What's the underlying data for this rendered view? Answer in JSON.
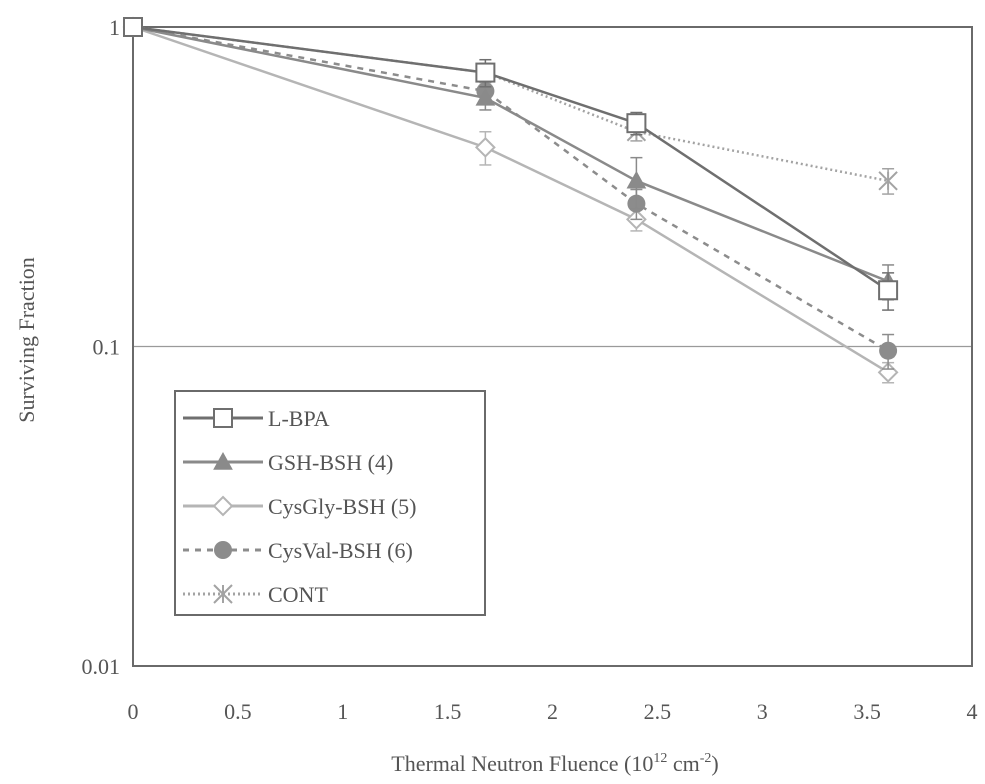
{
  "chart_data": {
    "type": "line",
    "title": "",
    "xlabel": "Thermal Neutron Fluence (10",
    "xlabel_sup1": "12",
    "xlabel_mid": " cm",
    "xlabel_sup2": "-2",
    "xlabel_end": ")",
    "ylabel": "Surviving Fraction",
    "xlim": [
      0,
      4
    ],
    "ylim": [
      0.01,
      1
    ],
    "yscale": "log",
    "x_ticks": [
      "0",
      "0.5",
      "1",
      "1.5",
      "2",
      "2.5",
      "3",
      "3.5",
      "4"
    ],
    "x_tick_values": [
      0,
      0.5,
      1,
      1.5,
      2,
      2.5,
      3,
      3.5,
      4
    ],
    "y_ticks": [
      "1",
      "0.1",
      "0.01"
    ],
    "y_tick_values": [
      1,
      0.1,
      0.01
    ],
    "grid": "horizontal line at 0.1",
    "legend_position": "lower-left",
    "series": [
      {
        "name": "L-BPA",
        "marker": "open-square",
        "line": "solid",
        "color": "#6f6f6f",
        "x": [
          0,
          1.68,
          2.4,
          3.6
        ],
        "y": [
          1.0,
          0.72,
          0.5,
          0.15
        ],
        "err": [
          0,
          0.07,
          0.04,
          0.02
        ]
      },
      {
        "name": "GSH-BSH (4)",
        "marker": "filled-triangle",
        "line": "solid",
        "color": "#8a8a8a",
        "x": [
          0,
          1.68,
          2.4,
          3.6
        ],
        "y": [
          1.0,
          0.6,
          0.33,
          0.16
        ],
        "err": [
          0,
          0.05,
          0.06,
          0.02
        ]
      },
      {
        "name": "CysGly-BSH (5)",
        "marker": "open-diamond",
        "line": "solid",
        "color": "#b5b5b5",
        "x": [
          0,
          1.68,
          2.4,
          3.6
        ],
        "y": [
          1.0,
          0.42,
          0.25,
          0.083
        ],
        "err": [
          0,
          0.05,
          0.02,
          0.006
        ]
      },
      {
        "name": "CysVal-BSH (6)",
        "marker": "filled-circle",
        "line": "dashed",
        "color": "#8c8c8c",
        "x": [
          0,
          1.68,
          2.4,
          3.6
        ],
        "y": [
          1.0,
          0.63,
          0.28,
          0.097
        ],
        "err": [
          0,
          0.05,
          0.03,
          0.012
        ]
      },
      {
        "name": "CONT",
        "marker": "asterisk",
        "line": "dotted",
        "color": "#a3a3a3",
        "x": [
          0,
          1.68,
          2.4,
          3.6
        ],
        "y": [
          1.0,
          0.72,
          0.47,
          0.33
        ],
        "err": [
          0,
          0.05,
          0.03,
          0.03
        ]
      }
    ]
  }
}
